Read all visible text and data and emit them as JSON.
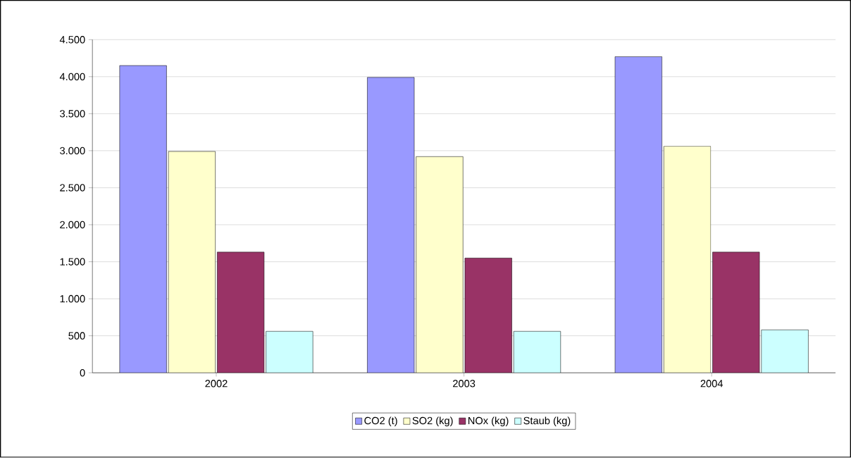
{
  "chart_data": {
    "type": "bar",
    "categories": [
      "2002",
      "2003",
      "2004"
    ],
    "series": [
      {
        "name": "CO2 (t)",
        "color": "#9999ff",
        "values": [
          4150,
          3990,
          4270
        ]
      },
      {
        "name": "SO2 (kg)",
        "color": "#ffffcc",
        "values": [
          2990,
          2920,
          3060
        ]
      },
      {
        "name": "NOx (kg)",
        "color": "#993366",
        "values": [
          1630,
          1550,
          1630
        ]
      },
      {
        "name": "Staub (kg)",
        "color": "#ccffff",
        "values": [
          560,
          560,
          580
        ]
      }
    ],
    "ylim": [
      0,
      4500
    ],
    "yticks": [
      {
        "value": 0,
        "label": "0"
      },
      {
        "value": 500,
        "label": "500"
      },
      {
        "value": 1000,
        "label": "1.000"
      },
      {
        "value": 1500,
        "label": "1.500"
      },
      {
        "value": 2000,
        "label": "2.000"
      },
      {
        "value": 2500,
        "label": "2.500"
      },
      {
        "value": 3000,
        "label": "3.000"
      },
      {
        "value": 3500,
        "label": "3.500"
      },
      {
        "value": 4000,
        "label": "4.000"
      },
      {
        "value": 4500,
        "label": "4.500"
      }
    ],
    "grid": "y",
    "legend": "bottom"
  }
}
